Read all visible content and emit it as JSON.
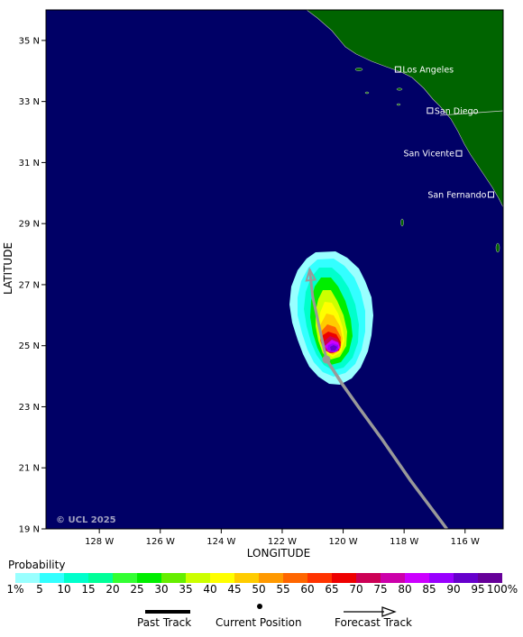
{
  "map": {
    "ocean_color": "#000066",
    "land_color": "#006400",
    "axes": {
      "x_title": "LONGITUDE",
      "y_title": "LATITUDE",
      "lon_range": [
        -129.75,
        -114.75
      ],
      "lat_range": [
        19,
        36
      ],
      "lon_ticks": [
        {
          "value": -128,
          "label": "128 W"
        },
        {
          "value": -126,
          "label": "126 W"
        },
        {
          "value": -124,
          "label": "124 W"
        },
        {
          "value": -122,
          "label": "122 W"
        },
        {
          "value": -120,
          "label": "120 W"
        },
        {
          "value": -118,
          "label": "118 W"
        },
        {
          "value": -116,
          "label": "116 W"
        }
      ],
      "lat_ticks": [
        {
          "value": 35,
          "label": "35 N"
        },
        {
          "value": 33,
          "label": "33 N"
        },
        {
          "value": 31,
          "label": "31 N"
        },
        {
          "value": 29,
          "label": "29 N"
        },
        {
          "value": 27,
          "label": "27 N"
        },
        {
          "value": 25,
          "label": "25 N"
        },
        {
          "value": 23,
          "label": "23 N"
        },
        {
          "value": 21,
          "label": "21 N"
        },
        {
          "value": 19,
          "label": "19 N"
        }
      ]
    },
    "cities": [
      {
        "name": "Los Angeles",
        "lon": -118.2,
        "lat": 34.05
      },
      {
        "name": "San Diego",
        "lon": -117.15,
        "lat": 32.7
      },
      {
        "name": "San Vicente",
        "lon": -116.2,
        "lat": 31.3
      },
      {
        "name": "San Fernando",
        "lon": -115.15,
        "lat": 29.95
      }
    ],
    "copyright": "© UCL 2025",
    "past_track": [
      {
        "lon": -116.6,
        "lat": 19.0
      },
      {
        "lon": -117.8,
        "lat": 20.6
      },
      {
        "lon": -118.7,
        "lat": 21.9
      },
      {
        "lon": -119.5,
        "lat": 23.0
      },
      {
        "lon": -120.0,
        "lat": 23.7
      },
      {
        "lon": -120.55,
        "lat": 24.55
      }
    ],
    "current_position": {
      "lon": -120.55,
      "lat": 24.55
    },
    "forecast_track": [
      {
        "lon": -120.55,
        "lat": 24.55
      },
      {
        "lon": -120.8,
        "lat": 25.7
      },
      {
        "lon": -121.0,
        "lat": 26.6
      },
      {
        "lon": -121.1,
        "lat": 27.5
      }
    ]
  },
  "legend": {
    "title": "Probability",
    "labels": [
      "1%",
      "5",
      "10",
      "15",
      "20",
      "25",
      "30",
      "35",
      "40",
      "45",
      "50",
      "55",
      "60",
      "65",
      "70",
      "75",
      "80",
      "85",
      "90",
      "95",
      "100%"
    ],
    "colors": [
      "#99ffff",
      "#33ffff",
      "#00ffcc",
      "#00ff99",
      "#33ff33",
      "#00ee00",
      "#66ee00",
      "#ccff00",
      "#ffff00",
      "#ffcc00",
      "#ff9900",
      "#ff6600",
      "#ff3300",
      "#ee0000",
      "#cc0055",
      "#cc00aa",
      "#cc00ff",
      "#9900ff",
      "#6600cc",
      "#660099"
    ]
  },
  "key": {
    "past_track_label": "Past Track",
    "current_position_label": "Current Position",
    "forecast_track_label": "Forecast Track"
  }
}
